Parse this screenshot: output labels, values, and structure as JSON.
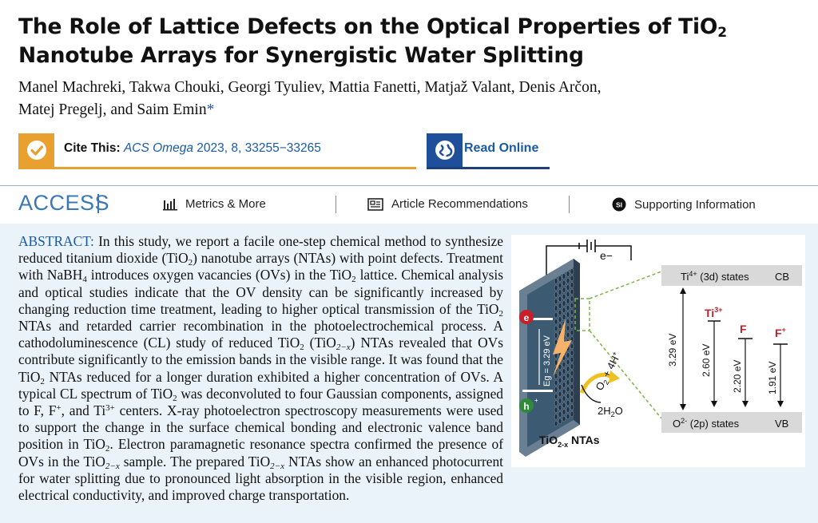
{
  "title": {
    "line1_a": "The Role of Lattice Defects on the Optical Properties of TiO",
    "line1_sub": "2",
    "line2": "Nanotube Arrays for Synergistic Water Splitting"
  },
  "authors": {
    "line1": "Manel Machreki, Takwa Chouki, Georgi Tyuliev, Mattia Fanetti, Matjaž Valant, Denis Arčon,",
    "line2": "Matej Pregelj, and Saim Emin",
    "star": "*"
  },
  "cite": {
    "label": "Cite This:",
    "journal": "ACS Omega",
    "volume": "2023, 8, 33255−33265"
  },
  "read_online": {
    "label": "Read Online"
  },
  "access": {
    "label": "ACCESS",
    "metrics": "Metrics & More",
    "recommendations": "Article Recommendations",
    "supporting": "Supporting Information",
    "si_badge": "SI"
  },
  "abstract": {
    "label": "ABSTRACT:",
    "p1": "In this study, we report a facile one-step chemical method to synthesize reduced titanium dioxide (TiO",
    "p2": ") nanotube arrays (NTAs) with point defects. Treatment with NaBH",
    "p3": " introduces oxygen vacancies (OVs) in the TiO",
    "p4": " lattice. Chemical analysis and optical studies indicate that the OV density can be significantly increased by changing reduction time treatment, leading to higher optical transmission of the TiO",
    "p5": " NTAs and retarded carrier recombination in the photoelectrochemical process. A cathodoluminescence (CL) study of reduced TiO",
    "p6": " (TiO",
    "p7": ") NTAs revealed that OVs contribute significantly to the emission bands in the visible range. It was found that the TiO",
    "p8": " NTAs reduced for a longer duration exhibited a higher concentration of OVs. A typical CL spectrum of TiO",
    "p9": " was deconvoluted to four Gaussian components, assigned to F, F",
    "p10": ", and Ti",
    "p11": " centers. X-ray photoelectron spectroscopy measurements were used to support the change in the surface chemical bonding and electronic valence band position in TiO",
    "p12": ". Electron paramagnetic resonance spectra confirmed the presence of OVs in the TiO",
    "p13": " sample. The prepared TiO",
    "p14": " NTAs show an enhanced photocurrent for water splitting due to pronounced light absorption in the visible region, enhanced electrical conductivity, and improved charge transportation.",
    "sub_2": "2",
    "sub_4": "4",
    "sub_2x": "2−x",
    "sup_plus": "+",
    "sup_3plus": "3+"
  },
  "figure": {
    "electron_label": "e−",
    "cb_label": "Ti",
    "cb_sup": "4+",
    "cb_rest": " (3d) states",
    "cb_tag": "CB",
    "vb_label": "O",
    "vb_sup": "2-",
    "vb_rest": " (2p) states",
    "vb_tag": "VB",
    "gap": "3.29 eV",
    "ti3_label": "Ti",
    "ti3_sup": "3+",
    "ti3_energy": "2.60 eV",
    "f_label": "F",
    "f_energy": "2.20 eV",
    "fplus_label": "F",
    "fplus_sup": "+",
    "fplus_energy": "1.91 eV",
    "eg_label": "Eg = 3.29 eV",
    "e_dot": "e",
    "h_dot": "h",
    "h_sup": "+",
    "o2_label": "O",
    "o2_rest": " + 4H",
    "h2o_label": "2H",
    "h2o_rest": "O",
    "nta_label": "TiO",
    "nta_sub": "2-x",
    "nta_rest": " NTAs",
    "colors": {
      "red": "#c8202a",
      "cb_band": "#d9d9d9",
      "arrow_yellow": "#f0c020",
      "dashed_green": "#7ab648",
      "tube": "#3d5a73"
    }
  }
}
